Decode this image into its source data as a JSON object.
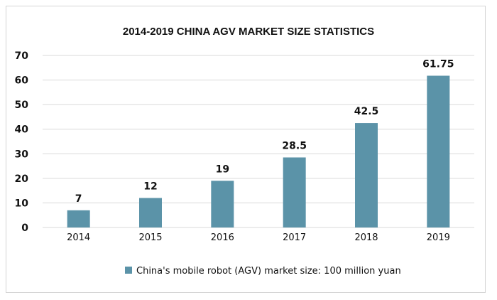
{
  "chart_data": {
    "type": "bar",
    "title": "2014-2019 CHINA AGV MARKET SIZE STATISTICS",
    "categories": [
      "2014",
      "2015",
      "2016",
      "2017",
      "2018",
      "2019"
    ],
    "series": [
      {
        "name": "China's mobile robot (AGV) market size: 100 million yuan",
        "values": [
          7,
          12,
          19,
          28.5,
          42.5,
          61.75
        ],
        "color": "#5b93a8"
      }
    ],
    "data_labels": [
      "7",
      "12",
      "19",
      "28.5",
      "42.5",
      "61.75"
    ],
    "ylim": [
      0,
      70
    ],
    "yticks": [
      0,
      10,
      20,
      30,
      40,
      50,
      60,
      70
    ],
    "grid": true,
    "legend_position": "bottom"
  }
}
